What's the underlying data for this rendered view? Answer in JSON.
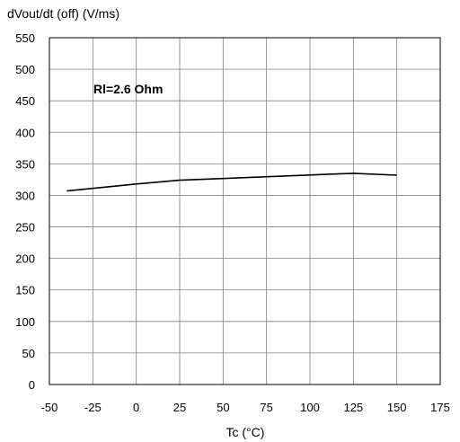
{
  "chart_data": {
    "type": "line",
    "ylabel": "dVout/dt (off) (V/ms)",
    "xlabel": "Tc (°C)",
    "annotation": "Rl=2.6 Ohm",
    "xlim": [
      -50,
      175
    ],
    "ylim": [
      0,
      550
    ],
    "xticks": [
      -50,
      -25,
      0,
      25,
      50,
      75,
      100,
      125,
      150,
      175
    ],
    "yticks": [
      0,
      50,
      100,
      150,
      200,
      250,
      300,
      350,
      400,
      450,
      500,
      550
    ],
    "xtick_labels": [
      "-50",
      "-25",
      "0",
      "25",
      "50",
      "75",
      "100",
      "125",
      "150",
      "175"
    ],
    "ytick_labels": [
      "0",
      "50",
      "100",
      "150",
      "200",
      "250",
      "300",
      "350",
      "400",
      "450",
      "500",
      "550"
    ],
    "grid": true,
    "series": [
      {
        "x": [
          -40,
          0,
          25,
          125,
          150
        ],
        "y": [
          307,
          318,
          324,
          335,
          332
        ],
        "color": "#000000"
      }
    ]
  }
}
